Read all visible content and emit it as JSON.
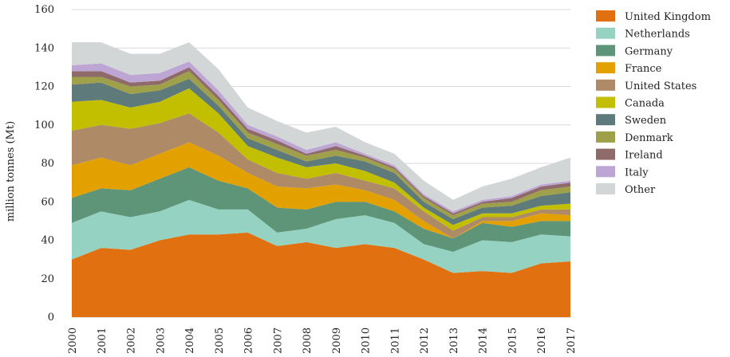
{
  "chart_data": {
    "type": "area",
    "stacked": true,
    "x": [
      "2000",
      "2001",
      "2002",
      "2003",
      "2004",
      "2005",
      "2006",
      "2007",
      "2008",
      "2009",
      "2010",
      "2011",
      "2012",
      "2013",
      "2014",
      "2015",
      "2016",
      "2017"
    ],
    "ylabel": "million tonnes (Mt)",
    "ylim": [
      0,
      160
    ],
    "yticks": [
      0,
      20,
      40,
      60,
      80,
      100,
      120,
      140,
      160
    ],
    "grid": true,
    "legend_position": "right",
    "series": [
      {
        "name": "United Kingdom",
        "color": "#E07010",
        "values": [
          30,
          36,
          35,
          40,
          43,
          43,
          44,
          37,
          39,
          36,
          38,
          36,
          30,
          23,
          24,
          23,
          28,
          29
        ]
      },
      {
        "name": "Netherlands",
        "color": "#96D2C2",
        "values": [
          19,
          19,
          17,
          15,
          18,
          13,
          12,
          7,
          7,
          15,
          15,
          13,
          8,
          11,
          16,
          16,
          15,
          13
        ]
      },
      {
        "name": "Germany",
        "color": "#5E9478",
        "values": [
          13,
          12,
          14,
          17,
          17,
          15,
          11,
          13,
          10,
          9,
          7,
          6,
          8,
          7,
          9,
          8,
          7,
          8
        ]
      },
      {
        "name": "France",
        "color": "#E3A100",
        "values": [
          17,
          16,
          13,
          13,
          13,
          13,
          8,
          11,
          11,
          9,
          6,
          6,
          4,
          0,
          1,
          3,
          4,
          3
        ]
      },
      {
        "name": "United States",
        "color": "#AE8A66",
        "values": [
          18,
          17,
          19,
          16,
          15,
          12,
          7,
          7,
          5,
          6,
          5,
          6,
          5,
          4,
          2,
          2,
          2,
          3
        ]
      },
      {
        "name": "Canada",
        "color": "#C1BF00",
        "values": [
          15,
          13,
          11,
          11,
          13,
          10,
          7,
          8,
          6,
          5,
          5,
          3,
          2,
          3,
          2,
          2,
          2,
          3
        ]
      },
      {
        "name": "Sweden",
        "color": "#5E7A7A",
        "values": [
          9,
          9,
          7,
          6,
          5,
          4,
          4,
          4,
          3,
          4,
          5,
          5,
          3,
          3,
          3,
          4,
          5,
          6
        ]
      },
      {
        "name": "Denmark",
        "color": "#9FA04A",
        "values": [
          4,
          3,
          4,
          3,
          4,
          3,
          3,
          3,
          3,
          3,
          2,
          2,
          2,
          2,
          2,
          2,
          3,
          3
        ]
      },
      {
        "name": "Ireland",
        "color": "#8F6A6A",
        "values": [
          3,
          3,
          2,
          2,
          2,
          2,
          2,
          2,
          1,
          2,
          1,
          1,
          1,
          1,
          1,
          2,
          2,
          2
        ]
      },
      {
        "name": "Italy",
        "color": "#BDA6D3",
        "values": [
          3,
          4,
          4,
          4,
          3,
          3,
          2,
          2,
          2,
          2,
          1,
          1,
          1,
          1,
          1,
          1,
          1,
          1
        ]
      },
      {
        "name": "Other",
        "color": "#D3D6D6",
        "values": [
          12,
          11,
          11,
          10,
          10,
          11,
          9,
          8,
          9,
          8,
          6,
          6,
          7,
          6,
          7,
          9,
          9,
          12
        ]
      }
    ]
  }
}
